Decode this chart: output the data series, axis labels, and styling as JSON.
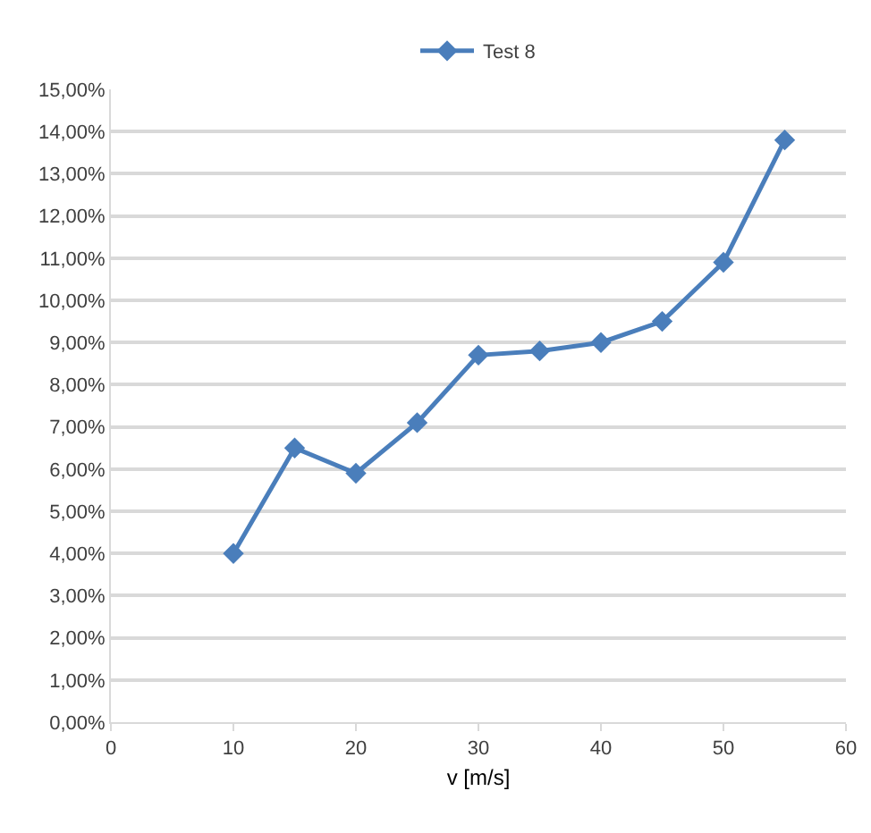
{
  "chart_data": {
    "type": "line",
    "xlabel": "v [m/s]",
    "x": [
      10,
      15,
      20,
      25,
      30,
      35,
      40,
      45,
      50,
      55
    ],
    "series": [
      {
        "name": "Test 8",
        "color": "#4a7ebb",
        "values": [
          4.0,
          6.5,
          5.9,
          7.1,
          8.7,
          8.8,
          9.0,
          9.5,
          10.9,
          13.8
        ]
      }
    ],
    "xlim": [
      0,
      60
    ],
    "xticks": [
      0,
      10,
      20,
      30,
      40,
      50,
      60
    ],
    "ylim": [
      0,
      15
    ],
    "yticks": [
      {
        "value": 0,
        "label": "0,00%"
      },
      {
        "value": 1,
        "label": "1,00%"
      },
      {
        "value": 2,
        "label": "2,00%"
      },
      {
        "value": 3,
        "label": "3,00%"
      },
      {
        "value": 4,
        "label": "4,00%"
      },
      {
        "value": 5,
        "label": "5,00%"
      },
      {
        "value": 6,
        "label": "6,00%"
      },
      {
        "value": 7,
        "label": "7,00%"
      },
      {
        "value": 8,
        "label": "8,00%"
      },
      {
        "value": 9,
        "label": "9,00%"
      },
      {
        "value": 10,
        "label": "10,00%"
      },
      {
        "value": 11,
        "label": "11,00%"
      },
      {
        "value": 12,
        "label": "12,00%"
      },
      {
        "value": 13,
        "label": "13,00%"
      },
      {
        "value": 14,
        "label": "14,00%"
      },
      {
        "value": 15,
        "label": "15,00%"
      }
    ],
    "grid": "y",
    "legend": "top",
    "marker": "diamond",
    "line_style": "solid"
  }
}
